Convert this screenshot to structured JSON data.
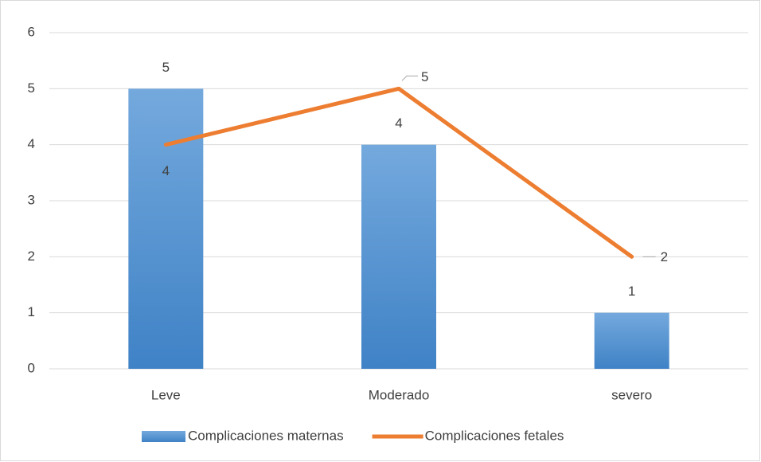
{
  "chart_data": {
    "type": "combo",
    "categories": [
      "Leve",
      "Moderado",
      "severo"
    ],
    "series": [
      {
        "name": "Complicaciones maternas",
        "type": "bar",
        "color": "#5b9bd5",
        "values": [
          5,
          4,
          1
        ]
      },
      {
        "name": "Complicaciones fetales",
        "type": "line",
        "color": "#ed7d31",
        "values": [
          4,
          5,
          2
        ]
      }
    ],
    "ylim": [
      0,
      6
    ],
    "yticks": [
      0,
      1,
      2,
      3,
      4,
      5,
      6
    ],
    "grid": true,
    "legend": "bottom",
    "data_labels": true
  }
}
